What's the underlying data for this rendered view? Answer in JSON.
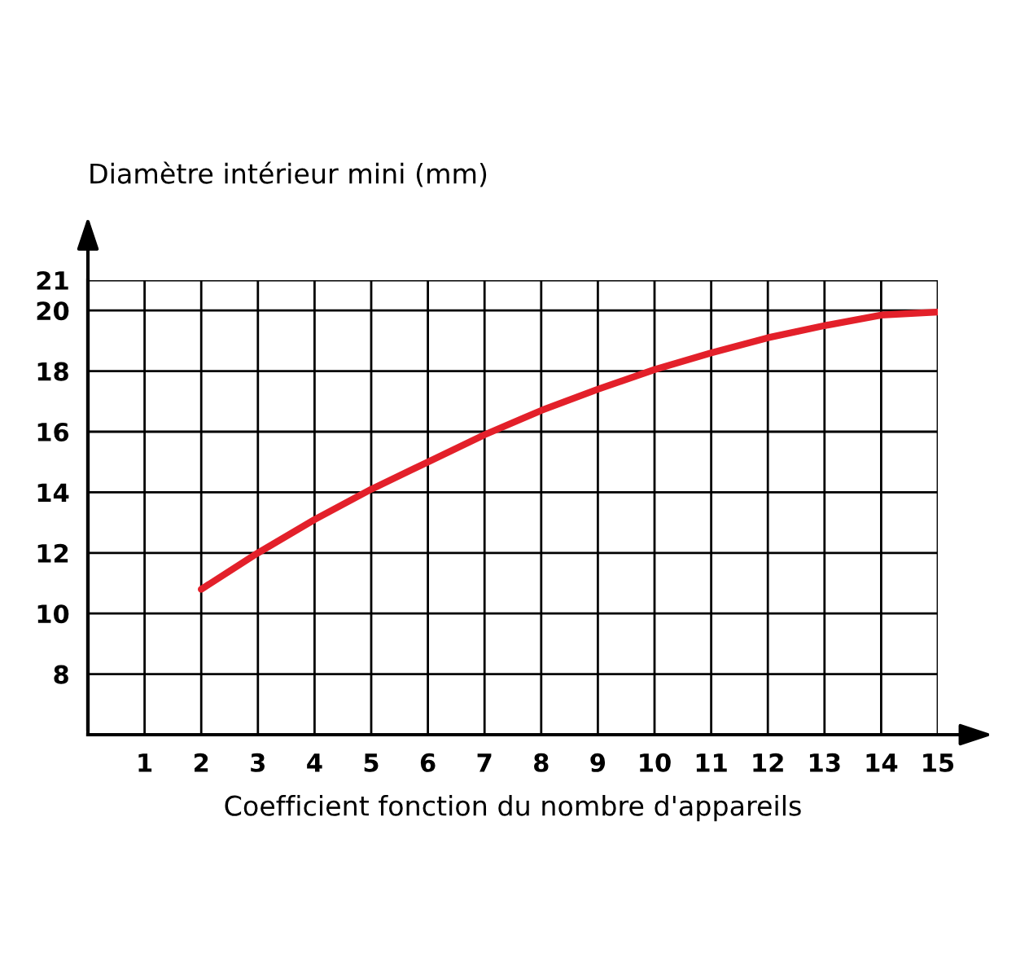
{
  "chart_data": {
    "type": "line",
    "xlabel": "Coefficient fonction du nombre d'appareils",
    "ylabel": "Diamètre intérieur mini (mm)",
    "x": [
      2,
      3,
      4,
      5,
      6,
      7,
      8,
      9,
      10,
      11,
      12,
      13,
      14,
      15
    ],
    "series": [
      {
        "color": "#e3202a",
        "values": [
          10.8,
          12.0,
          13.1,
          14.1,
          15.0,
          15.9,
          16.7,
          17.4,
          18.05,
          18.6,
          19.1,
          19.5,
          19.85,
          19.95
        ]
      }
    ],
    "xlim": [
      0,
      15
    ],
    "xticks": [
      1,
      2,
      3,
      4,
      5,
      6,
      7,
      8,
      9,
      10,
      11,
      12,
      13,
      14,
      15
    ],
    "ylim": [
      6,
      21
    ],
    "yticks": [
      8,
      10,
      12,
      14,
      16,
      18,
      20,
      21
    ],
    "grid": true,
    "marker": "none",
    "line_style": "solid"
  }
}
